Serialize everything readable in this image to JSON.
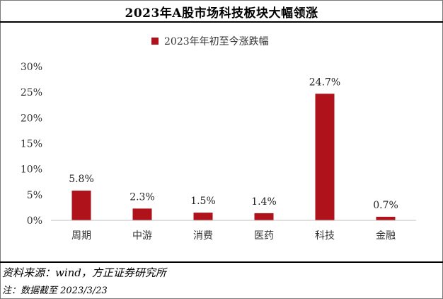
{
  "title": "2023年A股市场科技板块大幅领涨",
  "source": "资料来源：wind，方正证券研究所",
  "note": "注：数据截至 2023/3/23",
  "colors": {
    "bar": "#b0121b",
    "axis": "#bfbfbf"
  },
  "chart_data": {
    "type": "bar",
    "categories": [
      "周期",
      "中游",
      "消费",
      "医药",
      "科技",
      "金融"
    ],
    "series": [
      {
        "name": "2023年年初至今涨跌幅",
        "values": [
          5.8,
          2.3,
          1.5,
          1.4,
          24.7,
          0.7
        ]
      }
    ],
    "data_labels": [
      "5.8%",
      "2.3%",
      "1.5%",
      "1.4%",
      "24.7%",
      "0.7%"
    ],
    "y_ticks": [
      "0%",
      "5%",
      "10%",
      "15%",
      "20%",
      "25%",
      "30%"
    ],
    "ylim": [
      0,
      30
    ],
    "grid": false,
    "legend_position": "top-center"
  }
}
